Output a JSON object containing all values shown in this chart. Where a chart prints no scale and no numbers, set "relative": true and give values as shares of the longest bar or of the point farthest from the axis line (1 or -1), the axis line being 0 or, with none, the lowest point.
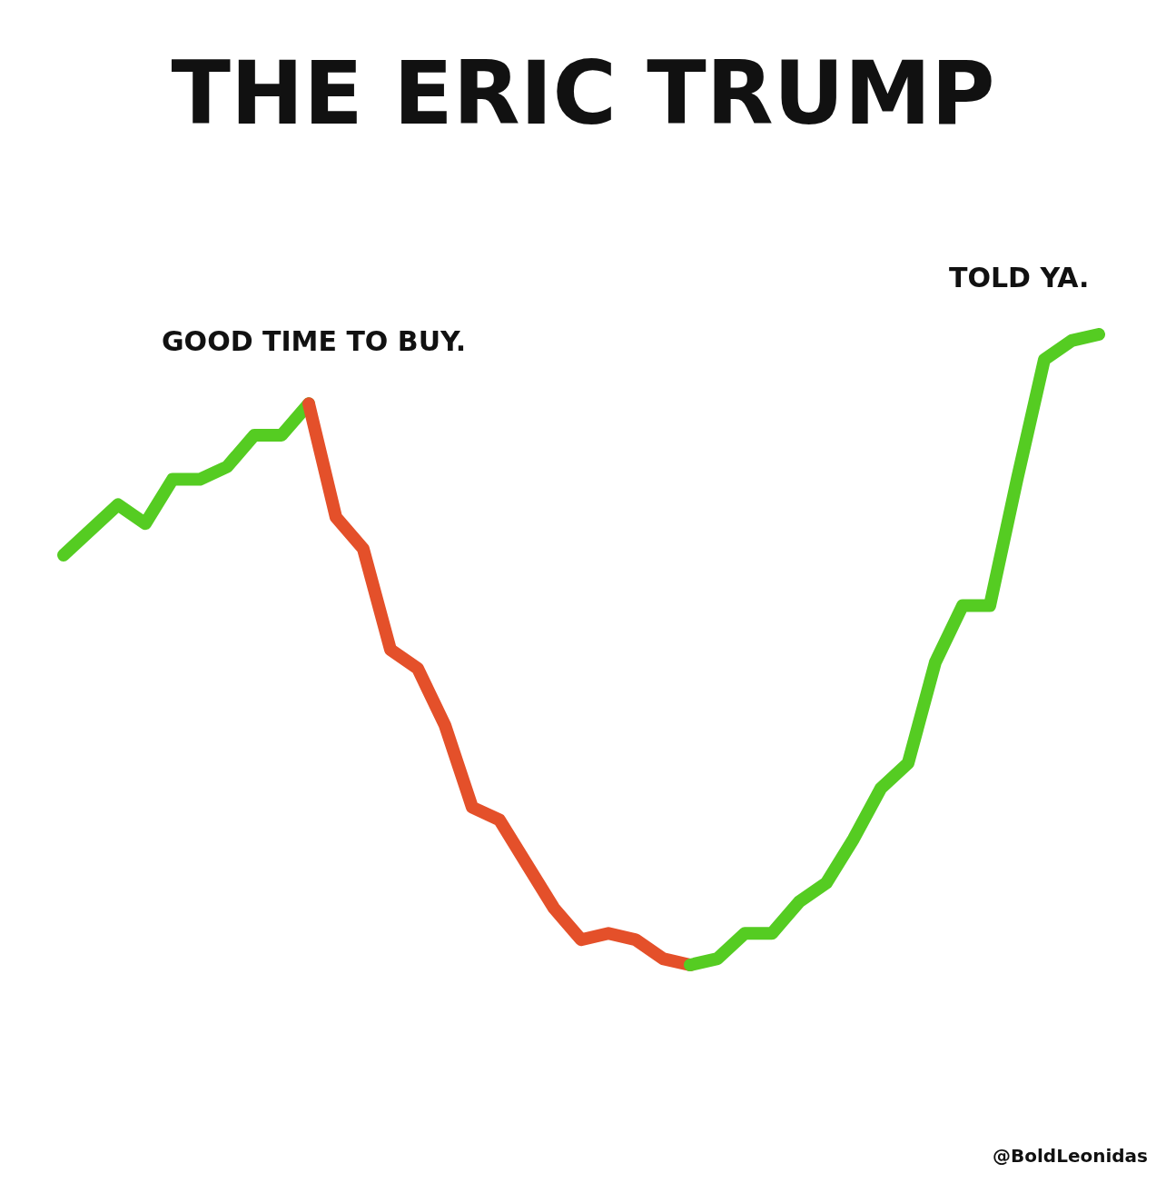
{
  "chart_data": {
    "type": "line",
    "title": "THE ERIC TRUMP",
    "relative": true,
    "categories": [
      null,
      null,
      null,
      null,
      null,
      null,
      null,
      null,
      null,
      null,
      null,
      null,
      null,
      null,
      null,
      null,
      null,
      null,
      null,
      null,
      null,
      null,
      null,
      null,
      null,
      null,
      null,
      null,
      null,
      null,
      null,
      null,
      null,
      null,
      null,
      null,
      null,
      null,
      null
    ],
    "series": [
      {
        "color": "#55cc22",
        "values": [
          0.65,
          0.69,
          0.73,
          0.7,
          0.77,
          0.77,
          0.79,
          0.84,
          0.84,
          0.89,
          null,
          null,
          null,
          null,
          null,
          null,
          null,
          null,
          null,
          null,
          null,
          null,
          null,
          null,
          null,
          null,
          null,
          null,
          null,
          null,
          null,
          null,
          null,
          null,
          null,
          null,
          null,
          null,
          null
        ]
      },
      {
        "color": "#e4502a",
        "values": [
          null,
          null,
          null,
          null,
          null,
          null,
          null,
          null,
          null,
          0.89,
          0.71,
          0.66,
          0.5,
          0.47,
          0.38,
          0.25,
          0.23,
          0.16,
          0.09,
          0.04,
          0.05,
          0.04,
          0.01,
          0,
          null,
          null,
          null,
          null,
          null,
          null,
          null,
          null,
          null,
          null,
          null,
          null,
          null,
          null,
          null
        ]
      },
      {
        "color": "#55cc22",
        "values": [
          null,
          null,
          null,
          null,
          null,
          null,
          null,
          null,
          null,
          null,
          null,
          null,
          null,
          null,
          null,
          null,
          null,
          null,
          null,
          null,
          null,
          null,
          null,
          0,
          0.01,
          0.05,
          0.05,
          0.1,
          0.13,
          0.2,
          0.28,
          0.32,
          0.48,
          0.57,
          0.57,
          0.77,
          0.96,
          0.99,
          1.0
        ]
      }
    ],
    "annotations": [
      "GOOD TIME TO BUY.",
      "TOLD YA.",
      "@BoldLeonidas"
    ]
  }
}
